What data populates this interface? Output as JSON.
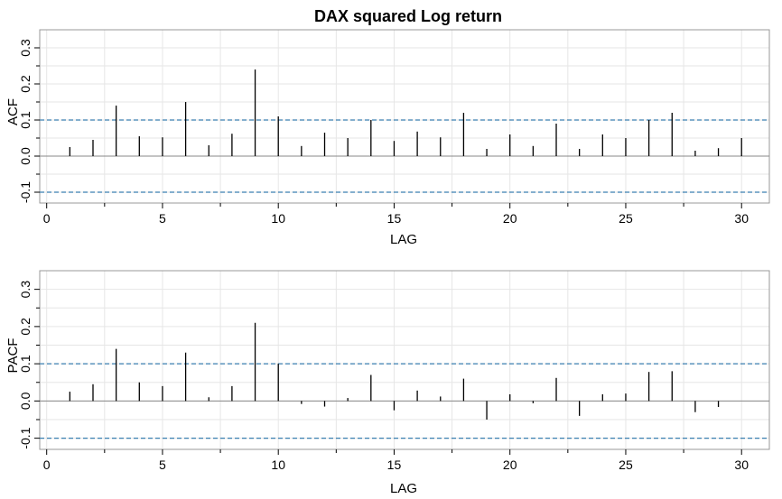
{
  "colors": {
    "bar": "#000000",
    "confidence_line": "#3a7fb0",
    "grid": "#e6e6e6",
    "frame": "#999999",
    "zero_line": "#888888"
  },
  "chart_data": [
    {
      "type": "bar",
      "title": "DAX squared Log return",
      "xlabel": "LAG",
      "ylabel": "ACF",
      "xlim": [
        -0.3,
        31.2
      ],
      "ylim": [
        -0.13,
        0.35
      ],
      "x_ticks": [
        0,
        5,
        10,
        15,
        20,
        25,
        30
      ],
      "y_ticks": [
        -0.1,
        0.0,
        0.1,
        0.2,
        0.3
      ],
      "y_tick_labels": [
        "-0.1",
        "0.0",
        "0.1",
        "0.2",
        "0.3"
      ],
      "confidence_bounds": [
        0.1,
        -0.1
      ],
      "grid": true,
      "lags": [
        1,
        2,
        3,
        4,
        5,
        6,
        7,
        8,
        9,
        10,
        11,
        12,
        13,
        14,
        15,
        16,
        17,
        18,
        19,
        20,
        21,
        22,
        23,
        24,
        25,
        26,
        27,
        28,
        29,
        30
      ],
      "values": [
        0.025,
        0.045,
        0.14,
        0.055,
        0.052,
        0.15,
        0.03,
        0.062,
        0.24,
        0.11,
        0.028,
        0.065,
        0.05,
        0.1,
        0.042,
        0.068,
        0.052,
        0.12,
        0.02,
        0.06,
        0.028,
        0.09,
        0.02,
        0.06,
        0.05,
        0.1,
        0.12,
        0.015,
        0.022,
        0.05
      ]
    },
    {
      "type": "bar",
      "title": "",
      "xlabel": "LAG",
      "ylabel": "PACF",
      "xlim": [
        -0.3,
        31.2
      ],
      "ylim": [
        -0.13,
        0.35
      ],
      "x_ticks": [
        0,
        5,
        10,
        15,
        20,
        25,
        30
      ],
      "y_ticks": [
        -0.1,
        0.0,
        0.1,
        0.2,
        0.3
      ],
      "y_tick_labels": [
        "-0.1",
        "0.0",
        "0.1",
        "0.2",
        "0.3"
      ],
      "confidence_bounds": [
        0.1,
        -0.1
      ],
      "grid": true,
      "lags": [
        1,
        2,
        3,
        4,
        5,
        6,
        7,
        8,
        9,
        10,
        11,
        12,
        13,
        14,
        15,
        16,
        17,
        18,
        19,
        20,
        21,
        22,
        23,
        24,
        25,
        26,
        27,
        28,
        29,
        30
      ],
      "values": [
        0.025,
        0.045,
        0.14,
        0.05,
        0.04,
        0.13,
        0.01,
        0.04,
        0.21,
        0.1,
        -0.008,
        -0.015,
        0.008,
        0.07,
        -0.025,
        0.028,
        0.012,
        0.06,
        -0.05,
        0.018,
        -0.006,
        0.062,
        -0.04,
        0.018,
        0.02,
        0.078,
        0.08,
        -0.03,
        -0.016,
        0.0
      ]
    }
  ]
}
